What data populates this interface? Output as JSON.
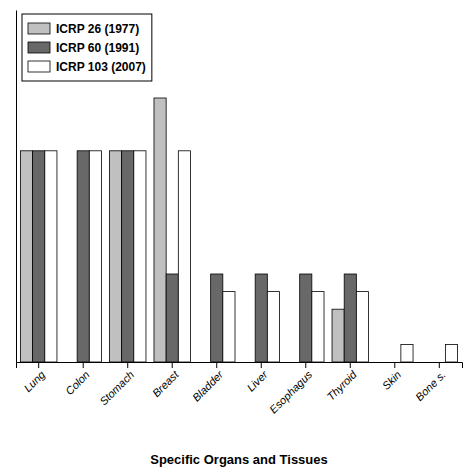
{
  "chart_data": {
    "type": "bar",
    "xlabel": "Specific Organs and Tissues",
    "categories": [
      "Lung",
      "Colon",
      "Stomach",
      "Breast",
      "Bladder",
      "Liver",
      "Esophagus",
      "Thyroid",
      "Skin",
      "Bone s."
    ],
    "series": [
      {
        "name": "ICRP 26 (1977)",
        "color": "#c0c0c0",
        "values": [
          0.12,
          0.0,
          0.12,
          0.15,
          0.0,
          0.0,
          0.0,
          0.03,
          0.0,
          0.0
        ]
      },
      {
        "name": "ICRP 60 (1991)",
        "color": "#686868",
        "values": [
          0.12,
          0.12,
          0.12,
          0.05,
          0.05,
          0.05,
          0.05,
          0.05,
          0.0,
          0.0
        ]
      },
      {
        "name": "ICRP 103 (2007)",
        "color": "#ffffff",
        "values": [
          0.12,
          0.12,
          0.12,
          0.12,
          0.04,
          0.04,
          0.04,
          0.04,
          0.01,
          0.01
        ]
      }
    ],
    "ylim": [
      0,
      0.2
    ],
    "legend": "top-left",
    "tick_labels": "x",
    "grid": false
  }
}
